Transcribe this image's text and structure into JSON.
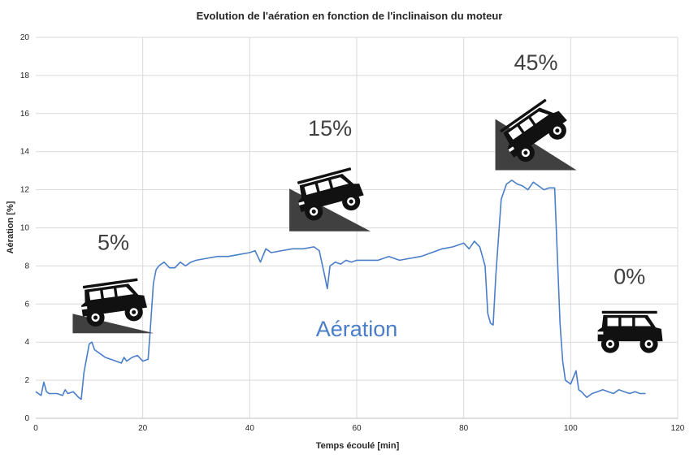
{
  "chart_data": {
    "type": "line",
    "title": "Evolution de l'aération en fonction de l'inclinaison du moteur",
    "xlabel": "Temps écoulé [min]",
    "ylabel": "Aération [%]",
    "xlim": [
      0,
      120
    ],
    "ylim": [
      0,
      20
    ],
    "xticks": [
      0,
      20,
      40,
      60,
      80,
      100,
      120
    ],
    "yticks": [
      0,
      2,
      4,
      6,
      8,
      10,
      12,
      14,
      16,
      18,
      20
    ],
    "grid": true,
    "colors": {
      "series": "#4a7ec9",
      "grid": "#d9d9d9",
      "axis": "#bfbfbf",
      "vehicle": "#111111",
      "ramp": "#404040"
    },
    "series": [
      {
        "name": "Aération",
        "x": [
          0,
          1,
          1.5,
          2,
          2.5,
          3,
          4,
          5,
          5.5,
          6,
          7,
          8,
          8.5,
          9,
          10,
          10.5,
          11,
          12,
          13,
          14,
          15,
          16,
          16.5,
          17,
          18,
          19,
          20,
          21,
          21.5,
          22,
          22.5,
          23,
          24,
          25,
          26,
          27,
          28,
          29,
          30,
          32,
          34,
          36,
          38,
          40,
          41,
          42,
          43,
          44,
          46,
          48,
          50,
          52,
          53,
          54,
          54.5,
          55,
          56,
          57,
          58,
          59,
          60,
          62,
          64,
          66,
          68,
          70,
          72,
          74,
          76,
          78,
          80,
          81,
          82,
          83,
          84,
          84.5,
          85,
          85.5,
          86,
          87,
          88,
          89,
          90,
          91,
          92,
          93,
          94,
          95,
          96,
          97,
          98,
          98.5,
          99,
          100,
          101,
          101.5,
          102,
          103,
          104,
          105,
          106,
          107,
          108,
          109,
          110,
          111,
          112,
          113,
          114
        ],
        "values": [
          1.4,
          1.2,
          1.9,
          1.4,
          1.3,
          1.3,
          1.3,
          1.2,
          1.5,
          1.3,
          1.4,
          1.1,
          1.0,
          2.4,
          3.9,
          4.0,
          3.6,
          3.4,
          3.2,
          3.1,
          3.0,
          2.9,
          3.2,
          3.0,
          3.2,
          3.3,
          3.0,
          3.1,
          5.0,
          7.1,
          7.8,
          8.0,
          8.2,
          7.9,
          7.9,
          8.2,
          8.0,
          8.2,
          8.3,
          8.4,
          8.5,
          8.5,
          8.6,
          8.7,
          8.8,
          8.2,
          8.9,
          8.7,
          8.8,
          8.9,
          8.9,
          9.0,
          8.8,
          7.5,
          6.8,
          8.0,
          8.2,
          8.1,
          8.3,
          8.2,
          8.3,
          8.3,
          8.3,
          8.5,
          8.3,
          8.4,
          8.5,
          8.7,
          8.9,
          9.0,
          9.2,
          8.9,
          9.3,
          9.0,
          8.0,
          5.5,
          5.0,
          4.9,
          7.5,
          11.5,
          12.3,
          12.5,
          12.3,
          12.2,
          12.0,
          12.4,
          12.2,
          12.0,
          12.1,
          12.1,
          5.0,
          3.0,
          2.0,
          1.8,
          2.5,
          1.5,
          1.4,
          1.1,
          1.3,
          1.4,
          1.5,
          1.4,
          1.3,
          1.5,
          1.4,
          1.3,
          1.4,
          1.3,
          1.3
        ]
      }
    ],
    "series_label": "Aération",
    "inclinations": [
      {
        "label": "5%",
        "x": 14.5,
        "y": 8.85,
        "angle": -8,
        "ramp_height": 0.8
      },
      {
        "label": "15%",
        "x": 55,
        "y": 14.85,
        "angle": -15,
        "ramp_height": 1.75
      },
      {
        "label": "45%",
        "x": 93.5,
        "y": 18.3,
        "angle": -35,
        "ramp_height": 2.1
      },
      {
        "label": "0%",
        "x": 111,
        "y": 7.05,
        "angle": 0,
        "ramp_height": 0
      }
    ],
    "vehicle_icon": "off-road-suv-icon",
    "ramp_icon": "slope-ramp-icon"
  }
}
